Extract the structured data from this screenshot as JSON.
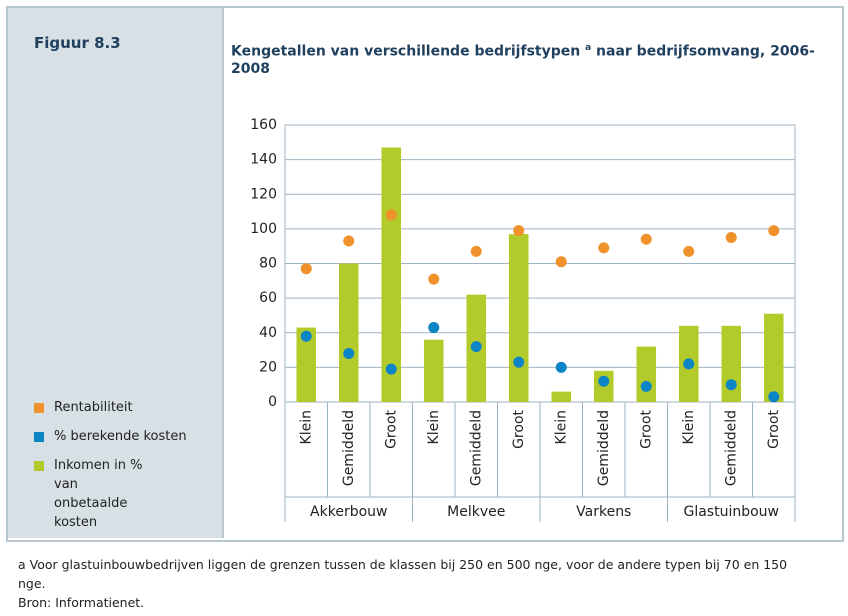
{
  "figure_label": "Figuur 8.3",
  "chart_data": {
    "type": "bar",
    "title": "Kengetallen van verschillende bedrijfstypen",
    "title_superscript": "a",
    "title_rest": "naar bedrijfsomvang, 2006-2008",
    "categories": [
      "Klein",
      "Gemiddeld",
      "Groot",
      "Klein",
      "Gemiddeld",
      "Groot",
      "Klein",
      "Gemiddeld",
      "Groot",
      "Klein",
      "Gemiddeld",
      "Groot"
    ],
    "groups": [
      "Akkerbouw",
      "Melkvee",
      "Varkens",
      "Glastuinbouw"
    ],
    "ylim": [
      0,
      160
    ],
    "yticks": [
      0,
      20,
      40,
      60,
      80,
      100,
      120,
      140,
      160
    ],
    "grid": true,
    "series": [
      {
        "name": "Rentabiliteit",
        "type": "scatter",
        "color": "#f0922b",
        "values": [
          77,
          93,
          108,
          71,
          87,
          99,
          81,
          89,
          94,
          87,
          95,
          99
        ]
      },
      {
        "name": "% berekende kosten",
        "type": "scatter",
        "color": "#0b85c6",
        "values": [
          38,
          28,
          19,
          43,
          32,
          23,
          20,
          12,
          9,
          22,
          10,
          3
        ]
      },
      {
        "name": "Inkomen in % van onbetaalde kosten",
        "type": "bar",
        "color": "#b3ca2b",
        "values": [
          43,
          80,
          147,
          36,
          62,
          97,
          6,
          18,
          32,
          44,
          44,
          51
        ]
      }
    ]
  },
  "footnote": "a   Voor glastuinbouwbedrijven liggen de grenzen tussen de klassen bij 250 en 500 nge, voor de andere typen bij 70 en 150 nge.",
  "source": "Bron: Informatienet."
}
